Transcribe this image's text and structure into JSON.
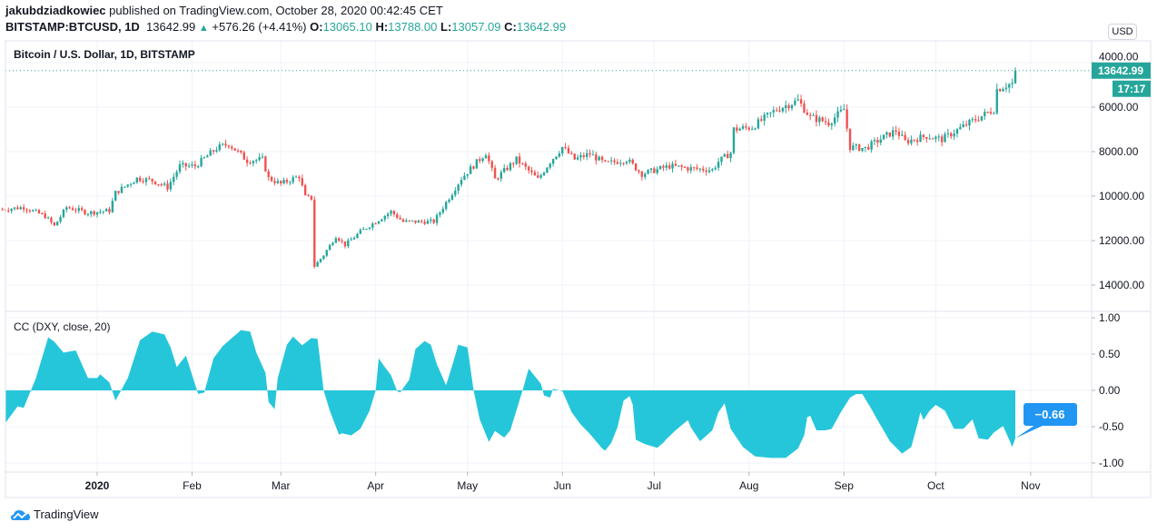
{
  "header": {
    "author": "jakubdziadkowiec",
    "published": "published on TradingView.com, October 28, 2020 00:42:45 CET",
    "symbol": "BITSTAMP:BTCUSD, 1D",
    "last": "13642.99",
    "change": "+576.26 (+4.41%)",
    "o_label": "O:",
    "o": "13065.10",
    "h_label": "H:",
    "h": "13788.00",
    "l_label": "L:",
    "l": "13057.09",
    "c_label": "C:",
    "c": "13642.99"
  },
  "price_pane": {
    "title": "Bitcoin / U.S. Dollar, 1D, BITSTAMP",
    "currency": "USD",
    "last_price_label": "13642.99",
    "countdown": "17:17",
    "y_ticks": [
      "14000.00",
      "12000.00",
      "10000.00",
      "8000.00",
      "6000.00",
      "4000.00"
    ]
  },
  "indicator_pane": {
    "title": "CC (DXY, close, 20)",
    "last_value_label": "−0.66",
    "y_ticks": [
      "1.00",
      "0.50",
      "0.00",
      "-0.50",
      "-1.00"
    ]
  },
  "x_ticks": [
    {
      "label": "2020",
      "date": "2020-01-01"
    },
    {
      "label": "Feb",
      "date": "2020-02-01"
    },
    {
      "label": "Mar",
      "date": "2020-03-01"
    },
    {
      "label": "Apr",
      "date": "2020-04-01"
    },
    {
      "label": "May",
      "date": "2020-05-01"
    },
    {
      "label": "Jun",
      "date": "2020-06-01"
    },
    {
      "label": "Jul",
      "date": "2020-07-01"
    },
    {
      "label": "Aug",
      "date": "2020-08-01"
    },
    {
      "label": "Sep",
      "date": "2020-09-01"
    },
    {
      "label": "Oct",
      "date": "2020-10-01"
    },
    {
      "label": "Nov",
      "date": "2020-11-01"
    }
  ],
  "footer": {
    "brand": "TradingView"
  },
  "colors": {
    "up": "#26a69a",
    "down": "#ef5350",
    "cc_fill": "#26c6da",
    "cc_label": "#2196f3",
    "grid": "#f0f3fa"
  },
  "chart_data": [
    {
      "type": "candlestick",
      "title": "Bitcoin / U.S. Dollar, 1D, BITSTAMP",
      "ylim": [
        3500,
        14600
      ],
      "y_ticks": [
        4000,
        6000,
        8000,
        10000,
        12000,
        14000
      ],
      "last_candle": {
        "date": "2020-10-27",
        "open": 13065.1,
        "high": 13788.0,
        "low": 13057.09,
        "close": 13642.99
      },
      "approx_closes": [
        [
          "2019-12-01",
          7400
        ],
        [
          "2019-12-08",
          7500
        ],
        [
          "2019-12-15",
          7100
        ],
        [
          "2019-12-18",
          6650
        ],
        [
          "2019-12-22",
          7500
        ],
        [
          "2019-12-29",
          7250
        ],
        [
          "2020-01-05",
          7350
        ],
        [
          "2020-01-07",
          8150
        ],
        [
          "2020-01-14",
          8800
        ],
        [
          "2020-01-19",
          8700
        ],
        [
          "2020-01-24",
          8400
        ],
        [
          "2020-01-28",
          9350
        ],
        [
          "2020-02-02",
          9350
        ],
        [
          "2020-02-09",
          10150
        ],
        [
          "2020-02-13",
          10350
        ],
        [
          "2020-02-19",
          9600
        ],
        [
          "2020-02-24",
          9650
        ],
        [
          "2020-02-26",
          8800
        ],
        [
          "2020-03-01",
          8550
        ],
        [
          "2020-03-07",
          8900
        ],
        [
          "2020-03-09",
          7950
        ],
        [
          "2020-03-11",
          7900
        ],
        [
          "2020-03-12",
          4850
        ],
        [
          "2020-03-15",
          5350
        ],
        [
          "2020-03-19",
          6200
        ],
        [
          "2020-03-22",
          5800
        ],
        [
          "2020-03-27",
          6400
        ],
        [
          "2020-04-06",
          7300
        ],
        [
          "2020-04-10",
          6850
        ],
        [
          "2020-04-20",
          6850
        ],
        [
          "2020-04-23",
          7500
        ],
        [
          "2020-04-29",
          8800
        ],
        [
          "2020-05-07",
          9950
        ],
        [
          "2020-05-10",
          8750
        ],
        [
          "2020-05-17",
          9650
        ],
        [
          "2020-05-24",
          8750
        ],
        [
          "2020-05-28",
          9550
        ],
        [
          "2020-06-01",
          10200
        ],
        [
          "2020-06-05",
          9650
        ],
        [
          "2020-06-10",
          9900
        ],
        [
          "2020-06-15",
          9450
        ],
        [
          "2020-06-22",
          9650
        ],
        [
          "2020-06-27",
          9000
        ],
        [
          "2020-07-06",
          9350
        ],
        [
          "2020-07-12",
          9250
        ],
        [
          "2020-07-20",
          9180
        ],
        [
          "2020-07-22",
          9550
        ],
        [
          "2020-07-26",
          9950
        ],
        [
          "2020-07-27",
          11000
        ],
        [
          "2020-08-02",
          11100
        ],
        [
          "2020-08-10",
          11900
        ],
        [
          "2020-08-17",
          12300
        ],
        [
          "2020-08-21",
          11550
        ],
        [
          "2020-08-27",
          11300
        ],
        [
          "2020-09-01",
          11900
        ],
        [
          "2020-09-03",
          10200
        ],
        [
          "2020-09-08",
          10150
        ],
        [
          "2020-09-14",
          10650
        ],
        [
          "2020-09-18",
          10950
        ],
        [
          "2020-09-21",
          10450
        ],
        [
          "2020-09-28",
          10700
        ],
        [
          "2020-10-03",
          10550
        ],
        [
          "2020-10-09",
          11050
        ],
        [
          "2020-10-14",
          11450
        ],
        [
          "2020-10-20",
          11900
        ],
        [
          "2020-10-21",
          12800
        ],
        [
          "2020-10-24",
          13000
        ],
        [
          "2020-10-26",
          13050
        ]
      ]
    },
    {
      "type": "area",
      "title": "CC (DXY, close, 20)",
      "ylim": [
        -1.0,
        1.0
      ],
      "y_ticks": [
        1.0,
        0.5,
        0.0,
        -0.5,
        -1.0
      ],
      "last_value": -0.66,
      "points": [
        [
          "2019-12-02",
          -0.45
        ],
        [
          "2019-12-06",
          -0.22
        ],
        [
          "2019-12-08",
          -0.24
        ],
        [
          "2019-12-12",
          0.17
        ],
        [
          "2019-12-16",
          0.73
        ],
        [
          "2019-12-18",
          0.67
        ],
        [
          "2019-12-21",
          0.52
        ],
        [
          "2019-12-25",
          0.55
        ],
        [
          "2019-12-29",
          0.17
        ],
        [
          "2020-01-01",
          0.17
        ],
        [
          "2020-01-02",
          0.22
        ],
        [
          "2020-01-05",
          0.11
        ],
        [
          "2020-01-07",
          -0.14
        ],
        [
          "2020-01-11",
          0.17
        ],
        [
          "2020-01-15",
          0.69
        ],
        [
          "2020-01-19",
          0.81
        ],
        [
          "2020-01-23",
          0.77
        ],
        [
          "2020-01-25",
          0.59
        ],
        [
          "2020-01-27",
          0.32
        ],
        [
          "2020-01-30",
          0.48
        ],
        [
          "2020-02-03",
          -0.05
        ],
        [
          "2020-02-05",
          -0.03
        ],
        [
          "2020-02-08",
          0.44
        ],
        [
          "2020-02-11",
          0.61
        ],
        [
          "2020-02-17",
          0.83
        ],
        [
          "2020-02-20",
          0.81
        ],
        [
          "2020-02-22",
          0.52
        ],
        [
          "2020-02-25",
          0.24
        ],
        [
          "2020-02-26",
          -0.16
        ],
        [
          "2020-02-28",
          -0.26
        ],
        [
          "2020-02-29",
          0.17
        ],
        [
          "2020-03-03",
          0.63
        ],
        [
          "2020-03-05",
          0.74
        ],
        [
          "2020-03-08",
          0.62
        ],
        [
          "2020-03-11",
          0.72
        ],
        [
          "2020-03-13",
          0.71
        ],
        [
          "2020-03-15",
          0.0
        ],
        [
          "2020-03-17",
          -0.28
        ],
        [
          "2020-03-20",
          -0.61
        ],
        [
          "2020-03-21",
          -0.59
        ],
        [
          "2020-03-24",
          -0.62
        ],
        [
          "2020-03-27",
          -0.53
        ],
        [
          "2020-03-30",
          -0.28
        ],
        [
          "2020-04-01",
          0.0
        ],
        [
          "2020-04-02",
          0.44
        ],
        [
          "2020-04-04",
          0.32
        ],
        [
          "2020-04-06",
          0.21
        ],
        [
          "2020-04-08",
          -0.01
        ],
        [
          "2020-04-09",
          -0.03
        ],
        [
          "2020-04-12",
          0.15
        ],
        [
          "2020-04-14",
          0.57
        ],
        [
          "2020-04-17",
          0.68
        ],
        [
          "2020-04-19",
          0.63
        ],
        [
          "2020-04-21",
          0.36
        ],
        [
          "2020-04-24",
          0.07
        ],
        [
          "2020-04-26",
          0.34
        ],
        [
          "2020-04-28",
          0.63
        ],
        [
          "2020-05-01",
          0.59
        ],
        [
          "2020-05-03",
          0.0
        ],
        [
          "2020-05-05",
          -0.4
        ],
        [
          "2020-05-08",
          -0.71
        ],
        [
          "2020-05-10",
          -0.56
        ],
        [
          "2020-05-13",
          -0.65
        ],
        [
          "2020-05-15",
          -0.55
        ],
        [
          "2020-05-19",
          0.0
        ],
        [
          "2020-05-21",
          0.3
        ],
        [
          "2020-05-25",
          0.09
        ],
        [
          "2020-05-26",
          -0.07
        ],
        [
          "2020-05-28",
          -0.1
        ],
        [
          "2020-05-29",
          0.02
        ],
        [
          "2020-06-01",
          -0.01
        ],
        [
          "2020-06-03",
          -0.2
        ],
        [
          "2020-06-04",
          -0.3
        ],
        [
          "2020-06-07",
          -0.47
        ],
        [
          "2020-06-10",
          -0.6
        ],
        [
          "2020-06-14",
          -0.8
        ],
        [
          "2020-06-15",
          -0.83
        ],
        [
          "2020-06-17",
          -0.72
        ],
        [
          "2020-06-19",
          -0.51
        ],
        [
          "2020-06-21",
          -0.14
        ],
        [
          "2020-06-23",
          -0.08
        ],
        [
          "2020-06-24",
          -0.2
        ],
        [
          "2020-06-25",
          -0.68
        ],
        [
          "2020-06-28",
          -0.74
        ],
        [
          "2020-07-02",
          -0.79
        ],
        [
          "2020-07-04",
          -0.72
        ],
        [
          "2020-07-05",
          -0.67
        ],
        [
          "2020-07-08",
          -0.55
        ],
        [
          "2020-07-12",
          -0.41
        ],
        [
          "2020-07-13",
          -0.51
        ],
        [
          "2020-07-16",
          -0.7
        ],
        [
          "2020-07-20",
          -0.55
        ],
        [
          "2020-07-22",
          -0.3
        ],
        [
          "2020-07-24",
          -0.18
        ],
        [
          "2020-07-26",
          -0.53
        ],
        [
          "2020-07-30",
          -0.78
        ],
        [
          "2020-08-03",
          -0.91
        ],
        [
          "2020-08-08",
          -0.93
        ],
        [
          "2020-08-13",
          -0.93
        ],
        [
          "2020-08-17",
          -0.8
        ],
        [
          "2020-08-19",
          -0.62
        ],
        [
          "2020-08-20",
          -0.37
        ],
        [
          "2020-08-21",
          -0.35
        ],
        [
          "2020-08-23",
          -0.55
        ],
        [
          "2020-08-26",
          -0.55
        ],
        [
          "2020-08-28",
          -0.53
        ],
        [
          "2020-08-31",
          -0.3
        ],
        [
          "2020-09-03",
          -0.1
        ],
        [
          "2020-09-05",
          -0.05
        ],
        [
          "2020-09-07",
          -0.05
        ],
        [
          "2020-09-10",
          -0.26
        ],
        [
          "2020-09-12",
          -0.41
        ],
        [
          "2020-09-16",
          -0.7
        ],
        [
          "2020-09-20",
          -0.87
        ],
        [
          "2020-09-23",
          -0.78
        ],
        [
          "2020-09-25",
          -0.47
        ],
        [
          "2020-09-26",
          -0.3
        ],
        [
          "2020-09-27",
          -0.41
        ],
        [
          "2020-09-29",
          -0.28
        ],
        [
          "2020-10-01",
          -0.2
        ],
        [
          "2020-10-04",
          -0.28
        ],
        [
          "2020-10-07",
          -0.53
        ],
        [
          "2020-10-10",
          -0.53
        ],
        [
          "2020-10-13",
          -0.4
        ],
        [
          "2020-10-15",
          -0.66
        ],
        [
          "2020-10-18",
          -0.68
        ],
        [
          "2020-10-20",
          -0.58
        ],
        [
          "2020-10-23",
          -0.49
        ],
        [
          "2020-10-25",
          -0.68
        ],
        [
          "2020-10-26",
          -0.78
        ],
        [
          "2020-10-27",
          -0.66
        ]
      ]
    }
  ]
}
